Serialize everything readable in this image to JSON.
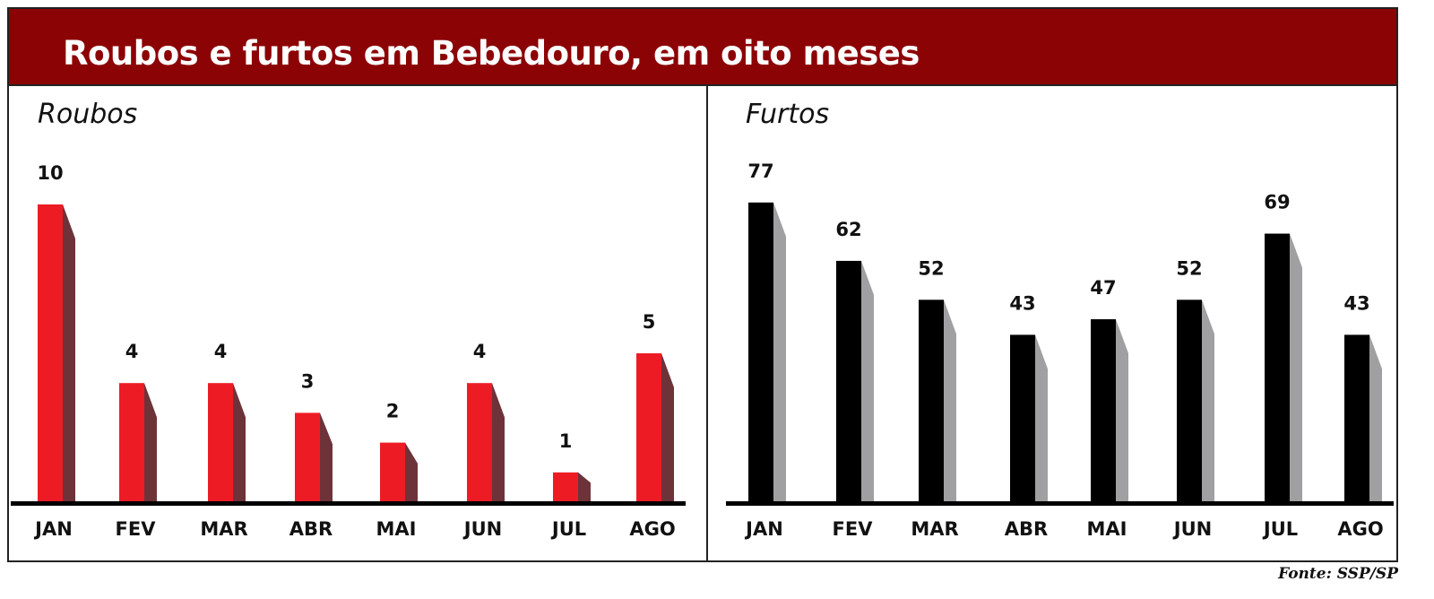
{
  "title": "Roubos e furtos em Bebedouro, em oito meses",
  "source": "Fonte: SSP/SP",
  "chart_data": [
    {
      "type": "bar",
      "title": "Roubos",
      "categories": [
        "JAN",
        "FEV",
        "MAR",
        "ABR",
        "MAI",
        "JUN",
        "JUL",
        "AGO"
      ],
      "values": [
        10,
        4,
        4,
        3,
        2,
        4,
        1,
        5
      ],
      "colors": {
        "front": "#ed1c24",
        "side": "#6e3339"
      }
    },
    {
      "type": "bar",
      "title": "Furtos",
      "categories": [
        "JAN",
        "FEV",
        "MAR",
        "ABR",
        "MAI",
        "JUN",
        "JUL",
        "AGO"
      ],
      "values": [
        77,
        62,
        52,
        43,
        47,
        52,
        69,
        43
      ],
      "colors": {
        "front": "#000000",
        "side": "#a0a0a2"
      }
    }
  ]
}
